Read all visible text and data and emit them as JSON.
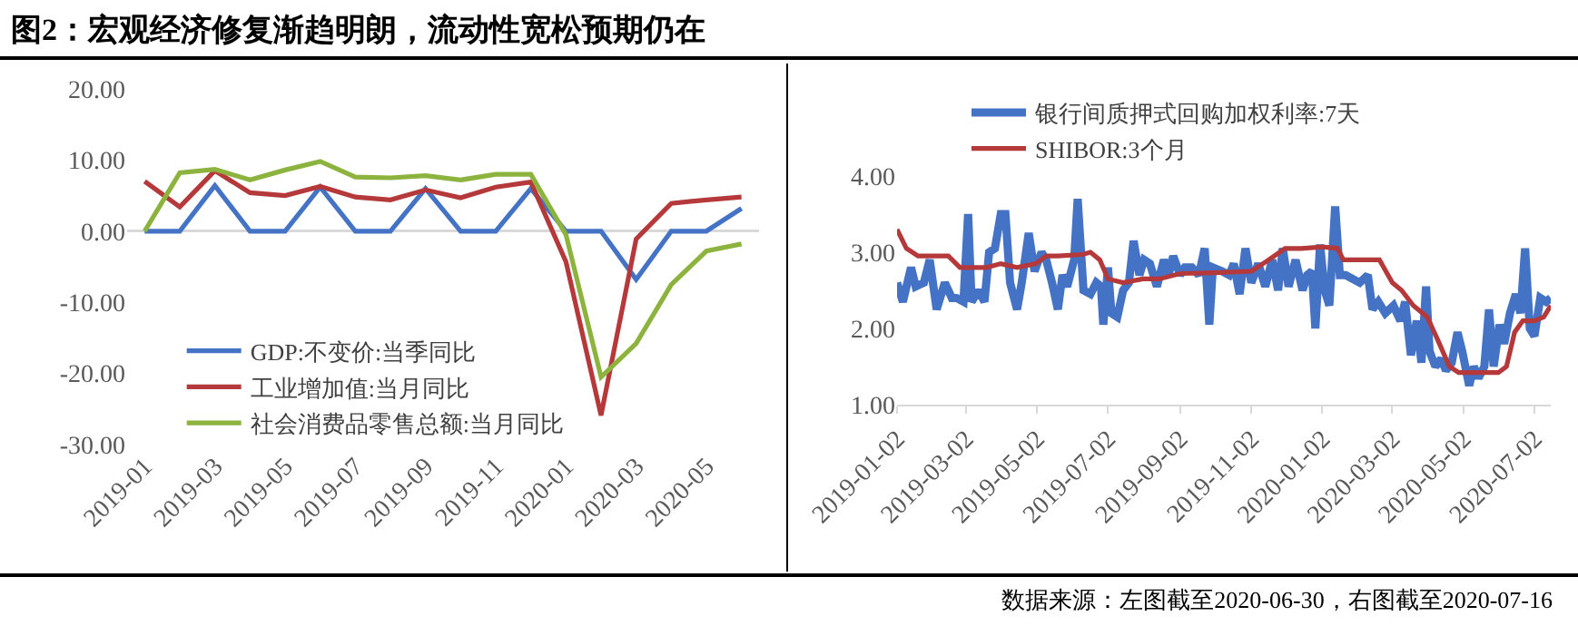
{
  "chart_data": [
    {
      "type": "line",
      "title": "图2：宏观经济修复渐趋明朗，流动性宽松预期仍在",
      "annotations": [
        "数据来源：左图截至2020-06-30，右图截至2020-07-16"
      ],
      "categories": [
        "2019-01",
        null,
        "2019-03",
        null,
        "2019-05",
        null,
        "2019-07",
        null,
        "2019-09",
        null,
        "2019-11",
        null,
        "2020-01",
        null,
        "2020-03",
        null,
        "2020-05",
        null
      ],
      "ylim": [
        -30,
        20
      ],
      "yticks": [
        {
          "value": -30,
          "label": "-30.00"
        },
        {
          "value": -20,
          "label": "-20.00"
        },
        {
          "value": -10,
          "label": "-10.00"
        },
        {
          "value": 0,
          "label": "0.00"
        },
        {
          "value": 10,
          "label": "10.00"
        },
        {
          "value": 20,
          "label": "20.00"
        }
      ],
      "legend": "bottom",
      "series": [
        {
          "name": "GDP:不变价:当季同比",
          "color": "#4472c4",
          "values": [
            0,
            0,
            6.4,
            0,
            0,
            6.2,
            0,
            0,
            6.0,
            0,
            0,
            6.0,
            0,
            0,
            -6.8,
            0,
            0,
            3.2
          ]
        },
        {
          "name": "工业增加值:当月同比",
          "color": "#b5393a",
          "values": [
            7.0,
            3.4,
            8.5,
            5.4,
            5.0,
            6.3,
            4.8,
            4.4,
            5.8,
            4.7,
            6.2,
            6.9,
            -4.3,
            -25.9,
            -1.1,
            3.9,
            4.4,
            4.8
          ]
        },
        {
          "name": "社会消费品零售总额:当月同比",
          "color": "#8db33f",
          "values": [
            0,
            8.2,
            8.7,
            7.2,
            8.6,
            9.8,
            7.6,
            7.5,
            7.8,
            7.2,
            8.0,
            8.0,
            -0.5,
            -20.5,
            -15.8,
            -7.5,
            -2.8,
            -1.8
          ]
        }
      ]
    },
    {
      "type": "line",
      "xlim": [
        "2019-01-02",
        "2020-07-16"
      ],
      "xticks": [
        "2019-01-02",
        "2019-03-02",
        "2019-05-02",
        "2019-07-02",
        "2019-09-02",
        "2019-11-02",
        "2020-01-02",
        "2020-03-02",
        "2020-05-02",
        "2020-07-02"
      ],
      "ylim": [
        1,
        4
      ],
      "yticks": [
        {
          "value": 1,
          "label": "1.00"
        },
        {
          "value": 2,
          "label": "2.00"
        },
        {
          "value": 3,
          "label": "3.00"
        },
        {
          "value": 4,
          "label": "4.00"
        }
      ],
      "legend": "top",
      "series": [
        {
          "name": "银行间质押式回购加权利率:7天",
          "color": "#4472c4",
          "x": [
            "2019-01-02",
            "2019-01-07",
            "2019-01-14",
            "2019-01-18",
            "2019-01-25",
            "2019-01-30",
            "2019-02-05",
            "2019-02-12",
            "2019-02-18",
            "2019-02-22",
            "2019-02-28",
            "2019-03-04",
            "2019-03-07",
            "2019-03-13",
            "2019-03-18",
            "2019-03-22",
            "2019-03-27",
            "2019-04-01",
            "2019-04-05",
            "2019-04-09",
            "2019-04-15",
            "2019-04-19",
            "2019-04-25",
            "2019-04-30",
            "2019-05-06",
            "2019-05-10",
            "2019-05-15",
            "2019-05-20",
            "2019-05-24",
            "2019-05-28",
            "2019-06-03",
            "2019-06-06",
            "2019-06-11",
            "2019-06-17",
            "2019-06-22",
            "2019-06-26",
            "2019-06-28",
            "2019-07-02",
            "2019-07-05",
            "2019-07-10",
            "2019-07-15",
            "2019-07-20",
            "2019-07-24",
            "2019-07-29",
            "2019-08-02",
            "2019-08-07",
            "2019-08-13",
            "2019-08-19",
            "2019-08-23",
            "2019-08-27",
            "2019-09-02",
            "2019-09-06",
            "2019-09-12",
            "2019-09-18",
            "2019-09-23",
            "2019-09-27",
            "2019-09-30",
            "2019-10-08",
            "2019-10-14",
            "2019-10-18",
            "2019-10-23",
            "2019-10-28",
            "2019-11-02",
            "2019-11-08",
            "2019-11-14",
            "2019-11-20",
            "2019-11-25",
            "2019-11-29",
            "2019-12-04",
            "2019-12-10",
            "2019-12-16",
            "2019-12-20",
            "2019-12-24",
            "2019-12-27",
            "2019-12-31",
            "2020-01-04",
            "2020-01-08",
            "2020-01-13",
            "2020-01-17",
            "2020-01-22",
            "2020-02-03",
            "2020-02-10",
            "2020-02-14",
            "2020-02-19",
            "2020-02-25",
            "2020-03-03",
            "2020-03-09",
            "2020-03-13",
            "2020-03-18",
            "2020-03-23",
            "2020-03-27",
            "2020-03-31",
            "2020-04-03",
            "2020-04-08",
            "2020-04-13",
            "2020-04-17",
            "2020-04-22",
            "2020-04-27",
            "2020-05-01",
            "2020-05-07",
            "2020-05-11",
            "2020-05-15",
            "2020-05-20",
            "2020-05-24",
            "2020-05-28",
            "2020-06-02",
            "2020-06-06",
            "2020-06-11",
            "2020-06-16",
            "2020-06-20",
            "2020-06-24",
            "2020-06-28",
            "2020-07-02",
            "2020-07-07",
            "2020-07-12",
            "2020-07-16"
          ],
          "values": [
            2.6,
            2.35,
            2.8,
            2.55,
            2.6,
            2.9,
            2.25,
            2.6,
            2.4,
            2.4,
            2.35,
            3.5,
            2.35,
            2.5,
            2.35,
            3.0,
            3.05,
            3.5,
            3.5,
            2.6,
            2.25,
            2.6,
            3.25,
            2.75,
            3.0,
            2.9,
            2.6,
            2.25,
            2.7,
            2.55,
            2.9,
            3.7,
            2.5,
            2.45,
            2.6,
            2.55,
            2.05,
            2.8,
            2.2,
            2.15,
            2.5,
            2.6,
            3.15,
            2.7,
            2.9,
            2.85,
            2.55,
            2.9,
            2.7,
            2.95,
            2.7,
            2.8,
            2.8,
            2.7,
            3.05,
            2.05,
            2.8,
            2.75,
            2.7,
            2.85,
            2.45,
            3.05,
            2.6,
            2.85,
            2.55,
            2.9,
            2.5,
            3.05,
            2.55,
            2.9,
            2.5,
            2.7,
            2.75,
            2.0,
            3.1,
            2.5,
            2.3,
            3.6,
            2.7,
            2.7,
            2.6,
            2.7,
            2.25,
            2.35,
            2.2,
            2.3,
            2.1,
            2.35,
            1.65,
            2.1,
            1.55,
            2.55,
            1.7,
            1.5,
            1.6,
            1.45,
            1.55,
            1.95,
            1.7,
            1.25,
            1.5,
            1.35,
            1.5,
            2.25,
            1.5,
            2.05,
            1.8,
            2.2,
            2.45,
            2.2,
            3.05,
            2.0,
            1.9,
            2.4,
            2.35,
            2.4
          ]
        },
        {
          "name": "SHIBOR:3个月",
          "color": "#b5393a",
          "x": [
            "2019-01-02",
            "2019-01-10",
            "2019-01-20",
            "2019-02-15",
            "2019-02-25",
            "2019-03-20",
            "2019-04-01",
            "2019-04-15",
            "2019-05-01",
            "2019-05-10",
            "2019-05-20",
            "2019-06-10",
            "2019-06-17",
            "2019-06-25",
            "2019-07-02",
            "2019-07-15",
            "2019-08-01",
            "2019-08-15",
            "2019-09-02",
            "2019-10-01",
            "2019-11-02",
            "2019-11-15",
            "2019-12-01",
            "2019-12-15",
            "2020-01-02",
            "2020-01-15",
            "2020-01-20",
            "2020-02-20",
            "2020-03-02",
            "2020-03-10",
            "2020-03-20",
            "2020-04-01",
            "2020-04-10",
            "2020-04-20",
            "2020-04-28",
            "2020-05-10",
            "2020-06-01",
            "2020-06-08",
            "2020-06-15",
            "2020-06-22",
            "2020-07-02",
            "2020-07-10",
            "2020-07-16"
          ],
          "values": [
            3.3,
            3.05,
            2.95,
            2.95,
            2.8,
            2.8,
            2.85,
            2.8,
            2.85,
            2.95,
            2.95,
            2.97,
            3.0,
            2.9,
            2.65,
            2.6,
            2.65,
            2.65,
            2.72,
            2.73,
            2.75,
            2.88,
            3.05,
            3.05,
            3.07,
            3.05,
            2.9,
            2.9,
            2.6,
            2.5,
            2.3,
            2.15,
            1.85,
            1.5,
            1.42,
            1.42,
            1.42,
            1.5,
            1.95,
            2.1,
            2.1,
            2.15,
            2.3
          ]
        }
      ]
    }
  ]
}
